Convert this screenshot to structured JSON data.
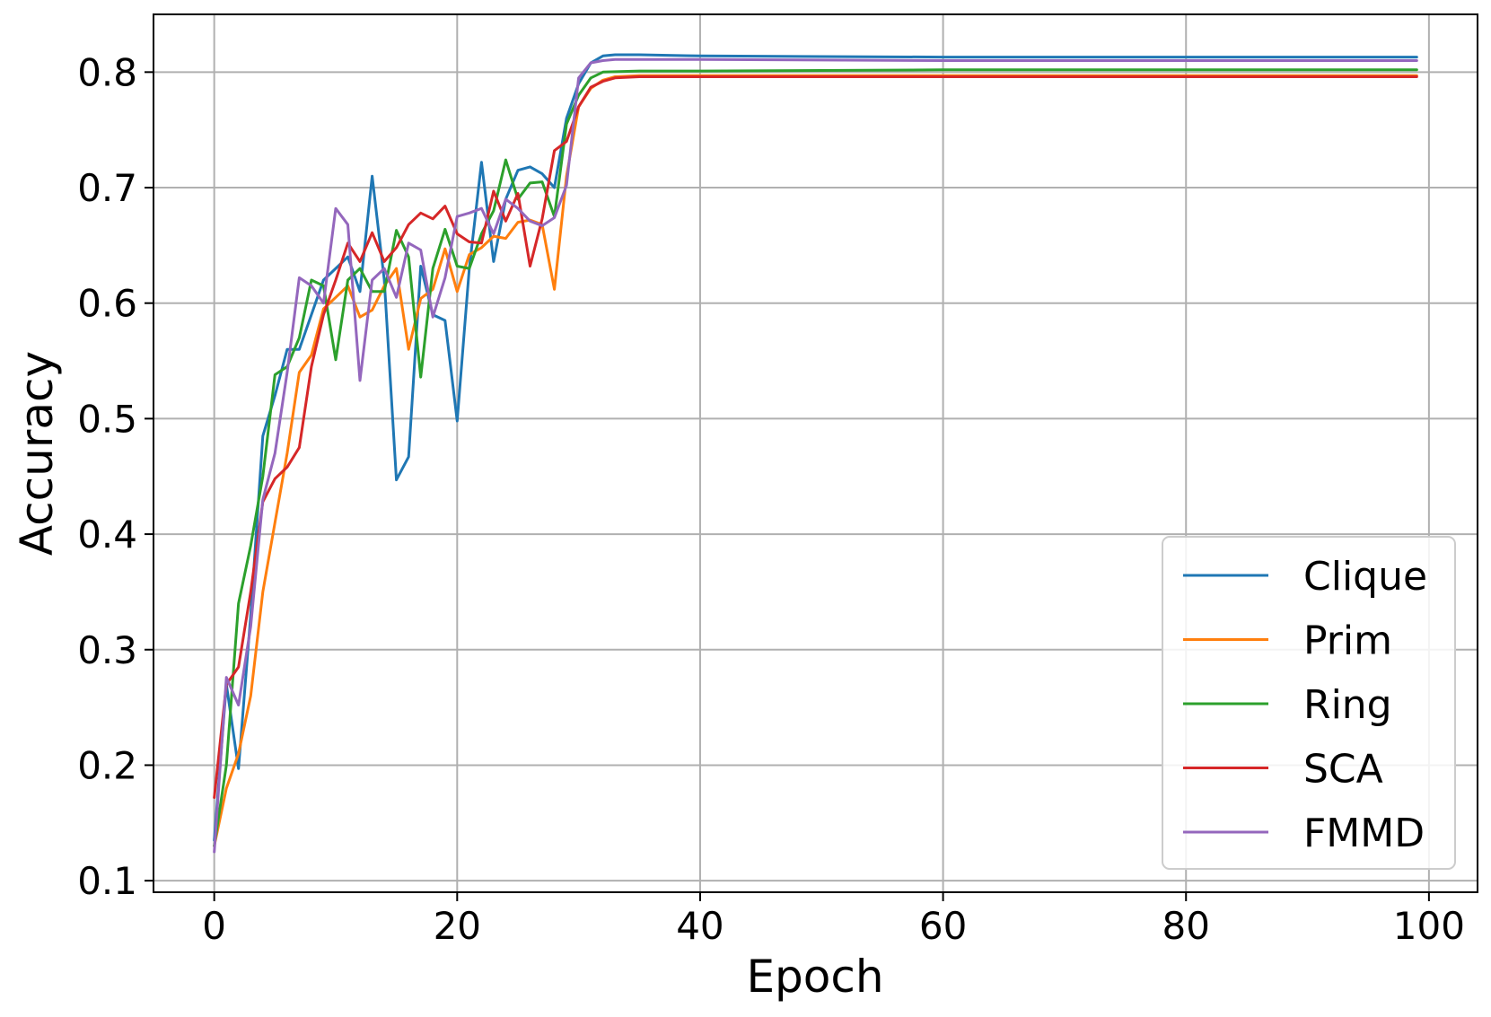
{
  "chart_data": {
    "type": "line",
    "title": "",
    "xlabel": "Epoch",
    "ylabel": "Accuracy",
    "xlim": [
      -5,
      104
    ],
    "ylim": [
      0.09,
      0.85
    ],
    "x_ticks": [
      0,
      20,
      40,
      60,
      80,
      100
    ],
    "y_ticks": [
      0.1,
      0.2,
      0.3,
      0.4,
      0.5,
      0.6,
      0.7,
      0.8
    ],
    "x_tick_labels": [
      "0",
      "20",
      "40",
      "60",
      "80",
      "100"
    ],
    "y_tick_labels": [
      "0.1",
      "0.2",
      "0.3",
      "0.4",
      "0.5",
      "0.6",
      "0.7",
      "0.8"
    ],
    "grid": true,
    "legend_position": "lower-right",
    "series": [
      {
        "name": "Clique",
        "color": "#1f77b4",
        "points": [
          [
            0,
            0.135
          ],
          [
            1,
            0.27
          ],
          [
            2,
            0.197
          ],
          [
            3,
            0.33
          ],
          [
            4,
            0.485
          ],
          [
            5,
            0.52
          ],
          [
            6,
            0.56
          ],
          [
            7,
            0.56
          ],
          [
            8,
            0.59
          ],
          [
            9,
            0.62
          ],
          [
            10,
            0.63
          ],
          [
            11,
            0.64
          ],
          [
            12,
            0.61
          ],
          [
            13,
            0.71
          ],
          [
            14,
            0.62
          ],
          [
            15,
            0.447
          ],
          [
            16,
            0.467
          ],
          [
            17,
            0.632
          ],
          [
            18,
            0.59
          ],
          [
            19,
            0.585
          ],
          [
            20,
            0.498
          ],
          [
            21,
            0.63
          ],
          [
            22,
            0.722
          ],
          [
            23,
            0.636
          ],
          [
            24,
            0.69
          ],
          [
            25,
            0.715
          ],
          [
            26,
            0.718
          ],
          [
            27,
            0.712
          ],
          [
            28,
            0.7
          ],
          [
            29,
            0.76
          ],
          [
            30,
            0.79
          ],
          [
            31,
            0.808
          ],
          [
            32,
            0.814
          ],
          [
            33,
            0.815
          ],
          [
            35,
            0.815
          ],
          [
            40,
            0.814
          ],
          [
            60,
            0.813
          ],
          [
            80,
            0.813
          ],
          [
            99,
            0.813
          ]
        ]
      },
      {
        "name": "Prim",
        "color": "#ff7f0e",
        "points": [
          [
            0,
            0.13
          ],
          [
            1,
            0.18
          ],
          [
            2,
            0.21
          ],
          [
            3,
            0.26
          ],
          [
            4,
            0.35
          ],
          [
            5,
            0.41
          ],
          [
            6,
            0.47
          ],
          [
            7,
            0.54
          ],
          [
            8,
            0.555
          ],
          [
            9,
            0.595
          ],
          [
            10,
            0.605
          ],
          [
            11,
            0.615
          ],
          [
            12,
            0.588
          ],
          [
            13,
            0.594
          ],
          [
            14,
            0.615
          ],
          [
            15,
            0.63
          ],
          [
            16,
            0.56
          ],
          [
            17,
            0.604
          ],
          [
            18,
            0.612
          ],
          [
            19,
            0.647
          ],
          [
            20,
            0.61
          ],
          [
            21,
            0.642
          ],
          [
            22,
            0.648
          ],
          [
            23,
            0.658
          ],
          [
            24,
            0.656
          ],
          [
            25,
            0.67
          ],
          [
            26,
            0.672
          ],
          [
            27,
            0.668
          ],
          [
            28,
            0.612
          ],
          [
            29,
            0.71
          ],
          [
            30,
            0.77
          ],
          [
            31,
            0.786
          ],
          [
            32,
            0.793
          ],
          [
            33,
            0.796
          ],
          [
            35,
            0.797
          ],
          [
            40,
            0.797
          ],
          [
            60,
            0.797
          ],
          [
            80,
            0.797
          ],
          [
            99,
            0.797
          ]
        ]
      },
      {
        "name": "Ring",
        "color": "#2ca02c",
        "points": [
          [
            0,
            0.13
          ],
          [
            1,
            0.2
          ],
          [
            2,
            0.34
          ],
          [
            3,
            0.39
          ],
          [
            4,
            0.45
          ],
          [
            5,
            0.538
          ],
          [
            6,
            0.545
          ],
          [
            7,
            0.57
          ],
          [
            8,
            0.62
          ],
          [
            9,
            0.615
          ],
          [
            10,
            0.551
          ],
          [
            11,
            0.62
          ],
          [
            12,
            0.63
          ],
          [
            13,
            0.61
          ],
          [
            14,
            0.61
          ],
          [
            15,
            0.663
          ],
          [
            16,
            0.64
          ],
          [
            17,
            0.536
          ],
          [
            18,
            0.63
          ],
          [
            19,
            0.664
          ],
          [
            20,
            0.632
          ],
          [
            21,
            0.63
          ],
          [
            22,
            0.66
          ],
          [
            23,
            0.68
          ],
          [
            24,
            0.724
          ],
          [
            25,
            0.69
          ],
          [
            26,
            0.704
          ],
          [
            27,
            0.705
          ],
          [
            28,
            0.675
          ],
          [
            29,
            0.755
          ],
          [
            30,
            0.78
          ],
          [
            31,
            0.795
          ],
          [
            32,
            0.8
          ],
          [
            35,
            0.801
          ],
          [
            40,
            0.801
          ],
          [
            60,
            0.802
          ],
          [
            80,
            0.802
          ],
          [
            99,
            0.802
          ]
        ]
      },
      {
        "name": "SCA",
        "color": "#d62728",
        "points": [
          [
            0,
            0.172
          ],
          [
            1,
            0.27
          ],
          [
            2,
            0.285
          ],
          [
            3,
            0.35
          ],
          [
            4,
            0.428
          ],
          [
            5,
            0.448
          ],
          [
            6,
            0.458
          ],
          [
            7,
            0.475
          ],
          [
            8,
            0.545
          ],
          [
            9,
            0.59
          ],
          [
            10,
            0.62
          ],
          [
            11,
            0.652
          ],
          [
            12,
            0.636
          ],
          [
            13,
            0.661
          ],
          [
            14,
            0.636
          ],
          [
            15,
            0.648
          ],
          [
            16,
            0.668
          ],
          [
            17,
            0.678
          ],
          [
            18,
            0.673
          ],
          [
            19,
            0.684
          ],
          [
            20,
            0.66
          ],
          [
            21,
            0.653
          ],
          [
            22,
            0.652
          ],
          [
            23,
            0.697
          ],
          [
            24,
            0.671
          ],
          [
            25,
            0.695
          ],
          [
            26,
            0.632
          ],
          [
            27,
            0.673
          ],
          [
            28,
            0.732
          ],
          [
            29,
            0.74
          ],
          [
            30,
            0.77
          ],
          [
            31,
            0.787
          ],
          [
            32,
            0.792
          ],
          [
            33,
            0.795
          ],
          [
            35,
            0.796
          ],
          [
            40,
            0.796
          ],
          [
            60,
            0.796
          ],
          [
            80,
            0.796
          ],
          [
            99,
            0.796
          ]
        ]
      },
      {
        "name": "FMMD",
        "color": "#9467bd",
        "points": [
          [
            0,
            0.125
          ],
          [
            1,
            0.276
          ],
          [
            2,
            0.252
          ],
          [
            3,
            0.32
          ],
          [
            4,
            0.43
          ],
          [
            5,
            0.47
          ],
          [
            6,
            0.54
          ],
          [
            7,
            0.622
          ],
          [
            8,
            0.615
          ],
          [
            9,
            0.6
          ],
          [
            10,
            0.682
          ],
          [
            11,
            0.668
          ],
          [
            12,
            0.533
          ],
          [
            13,
            0.62
          ],
          [
            14,
            0.63
          ],
          [
            15,
            0.605
          ],
          [
            16,
            0.652
          ],
          [
            17,
            0.646
          ],
          [
            18,
            0.588
          ],
          [
            19,
            0.622
          ],
          [
            20,
            0.675
          ],
          [
            21,
            0.678
          ],
          [
            22,
            0.682
          ],
          [
            23,
            0.66
          ],
          [
            24,
            0.69
          ],
          [
            25,
            0.682
          ],
          [
            26,
            0.671
          ],
          [
            27,
            0.667
          ],
          [
            28,
            0.674
          ],
          [
            29,
            0.702
          ],
          [
            30,
            0.795
          ],
          [
            31,
            0.808
          ],
          [
            32,
            0.81
          ],
          [
            33,
            0.811
          ],
          [
            35,
            0.811
          ],
          [
            40,
            0.811
          ],
          [
            60,
            0.81
          ],
          [
            80,
            0.81
          ],
          [
            99,
            0.81
          ]
        ]
      }
    ]
  }
}
